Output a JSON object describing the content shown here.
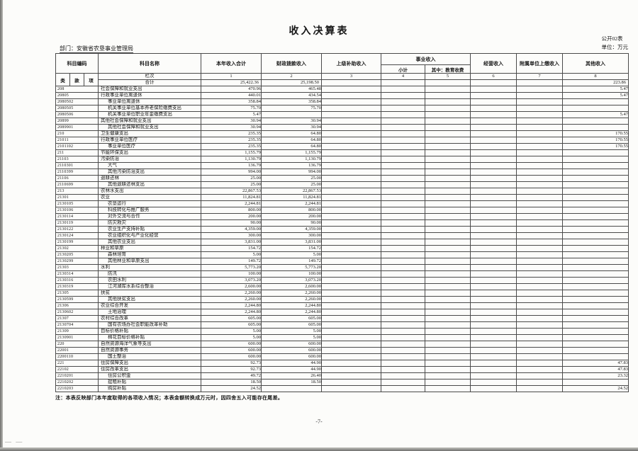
{
  "page": {
    "title": "收入决算表",
    "table_code": "公开02表",
    "unit_label": "单位：万元",
    "department_label": "部门：安徽省农垦事业管理局",
    "note": "注：本表反映部门本年度取得的各项收入情况；本表金额转换成万元时，因四舍五入可能存在尾差。",
    "page_number": "-7-",
    "corner_marks": "— —"
  },
  "table": {
    "headers": {
      "subject_code": "科目编码",
      "class": "类",
      "section": "款",
      "item": "项",
      "subject_name": "科目名称",
      "total_income": "本年收入合计",
      "fiscal_appropriation": "财政拨款收入",
      "superior_subsidy": "上级补助收入",
      "business_income": "事业收入",
      "subtotal": "小计",
      "education_fees": "其中：教育收费",
      "operating_income": "经营收入",
      "affiliated_unit_income": "附属单位上缴收入",
      "other_income": "其他收入"
    },
    "lanci": {
      "label": "栏次",
      "numbers": [
        "1",
        "2",
        "3",
        "4",
        "5",
        "6",
        "7",
        "8"
      ]
    },
    "total_row": {
      "label": "合计",
      "values": [
        "25,422.36",
        "25,198.50",
        "",
        "",
        "",
        "",
        "",
        "223.86"
      ]
    },
    "rows": [
      {
        "code": "208",
        "name": "社会保障和就业支出",
        "indent": 0,
        "v": [
          "470.96",
          "465.48",
          "",
          "",
          "",
          "",
          "",
          "5.47"
        ]
      },
      {
        "code": "20805",
        "name": "行政事业单位离退休",
        "indent": 0,
        "v": [
          "440.01",
          "434.54",
          "",
          "",
          "",
          "",
          "",
          "5.47"
        ]
      },
      {
        "code": "2080502",
        "name": "事业单位离退休",
        "indent": 1,
        "v": [
          "358.84",
          "358.84",
          "",
          "",
          "",
          "",
          "",
          ""
        ]
      },
      {
        "code": "2080505",
        "name": "机关事业单位基本养老保险缴费支出",
        "indent": 1,
        "v": [
          "75.70",
          "75.70",
          "",
          "",
          "",
          "",
          "",
          ""
        ]
      },
      {
        "code": "2080506",
        "name": "机关事业单位职业年金缴费支出",
        "indent": 1,
        "v": [
          "5.47",
          "",
          "",
          "",
          "",
          "",
          "",
          "5.47"
        ]
      },
      {
        "code": "20899",
        "name": "其他社会保障和就业支出",
        "indent": 0,
        "v": [
          "30.94",
          "30.94",
          "",
          "",
          "",
          "",
          "",
          ""
        ]
      },
      {
        "code": "2089901",
        "name": "其他社会保障和就业支出",
        "indent": 1,
        "v": [
          "30.94",
          "30.94",
          "",
          "",
          "",
          "",
          "",
          ""
        ]
      },
      {
        "code": "210",
        "name": "卫生健康支出",
        "indent": 0,
        "v": [
          "235.35",
          "64.80",
          "",
          "",
          "",
          "",
          "",
          "170.55"
        ]
      },
      {
        "code": "21011",
        "name": "行政事业单位医疗",
        "indent": 0,
        "v": [
          "235.35",
          "64.80",
          "",
          "",
          "",
          "",
          "",
          "170.55"
        ]
      },
      {
        "code": "2101102",
        "name": "事业单位医疗",
        "indent": 1,
        "v": [
          "235.35",
          "64.80",
          "",
          "",
          "",
          "",
          "",
          "170.55"
        ]
      },
      {
        "code": "211",
        "name": "节能环保支出",
        "indent": 0,
        "v": [
          "1,155.79",
          "1,155.79",
          "",
          "",
          "",
          "",
          "",
          ""
        ]
      },
      {
        "code": "21103",
        "name": "污染防治",
        "indent": 0,
        "v": [
          "1,130.79",
          "1,130.79",
          "",
          "",
          "",
          "",
          "",
          ""
        ]
      },
      {
        "code": "2110301",
        "name": "大气",
        "indent": 1,
        "v": [
          "136.79",
          "136.79",
          "",
          "",
          "",
          "",
          "",
          ""
        ]
      },
      {
        "code": "2110399",
        "name": "其他污染防治支出",
        "indent": 1,
        "v": [
          "994.00",
          "994.00",
          "",
          "",
          "",
          "",
          "",
          ""
        ]
      },
      {
        "code": "21106",
        "name": "退耕还林",
        "indent": 0,
        "v": [
          "25.00",
          "25.00",
          "",
          "",
          "",
          "",
          "",
          ""
        ]
      },
      {
        "code": "2110699",
        "name": "其他退耕还林支出",
        "indent": 1,
        "v": [
          "25.00",
          "25.00",
          "",
          "",
          "",
          "",
          "",
          ""
        ]
      },
      {
        "code": "213",
        "name": "农林水支出",
        "indent": 0,
        "v": [
          "22,867.53",
          "22,867.53",
          "",
          "",
          "",
          "",
          "",
          ""
        ]
      },
      {
        "code": "21301",
        "name": "农业",
        "indent": 0,
        "v": [
          "11,824.81",
          "11,824.81",
          "",
          "",
          "",
          "",
          "",
          ""
        ]
      },
      {
        "code": "2130105",
        "name": "农垦运行",
        "indent": 1,
        "v": [
          "2,244.81",
          "2,244.81",
          "",
          "",
          "",
          "",
          "",
          ""
        ]
      },
      {
        "code": "2130106",
        "name": "科技转化与推广服务",
        "indent": 1,
        "v": [
          "800.00",
          "800.00",
          "",
          "",
          "",
          "",
          "",
          ""
        ]
      },
      {
        "code": "2130114",
        "name": "对外交流与合作",
        "indent": 1,
        "v": [
          "200.00",
          "200.00",
          "",
          "",
          "",
          "",
          "",
          ""
        ]
      },
      {
        "code": "2130119",
        "name": "防灾救灾",
        "indent": 1,
        "v": [
          "90.00",
          "90.00",
          "",
          "",
          "",
          "",
          "",
          ""
        ]
      },
      {
        "code": "2130122",
        "name": "农业生产支持补贴",
        "indent": 1,
        "v": [
          "4,359.00",
          "4,359.00",
          "",
          "",
          "",
          "",
          "",
          ""
        ]
      },
      {
        "code": "2130124",
        "name": "农业组织化与产业化经营",
        "indent": 1,
        "v": [
          "300.00",
          "300.00",
          "",
          "",
          "",
          "",
          "",
          ""
        ]
      },
      {
        "code": "2130199",
        "name": "其他农业支出",
        "indent": 1,
        "v": [
          "3,831.00",
          "3,831.00",
          "",
          "",
          "",
          "",
          "",
          ""
        ]
      },
      {
        "code": "21302",
        "name": "林业和草原",
        "indent": 0,
        "v": [
          "154.72",
          "154.72",
          "",
          "",
          "",
          "",
          "",
          ""
        ]
      },
      {
        "code": "2130205",
        "name": "森林培育",
        "indent": 1,
        "v": [
          "5.00",
          "5.00",
          "",
          "",
          "",
          "",
          "",
          ""
        ]
      },
      {
        "code": "2130299",
        "name": "其他林业和草原支出",
        "indent": 1,
        "v": [
          "149.72",
          "149.72",
          "",
          "",
          "",
          "",
          "",
          ""
        ]
      },
      {
        "code": "21303",
        "name": "水利",
        "indent": 0,
        "v": [
          "5,773.20",
          "5,773.20",
          "",
          "",
          "",
          "",
          "",
          ""
        ]
      },
      {
        "code": "2130314",
        "name": "防汛",
        "indent": 1,
        "v": [
          "100.00",
          "100.00",
          "",
          "",
          "",
          "",
          "",
          ""
        ]
      },
      {
        "code": "2130316",
        "name": "农田水利",
        "indent": 1,
        "v": [
          "3,073.20",
          "3,073.20",
          "",
          "",
          "",
          "",
          "",
          ""
        ]
      },
      {
        "code": "2130319",
        "name": "江河湖库水系综合整治",
        "indent": 1,
        "v": [
          "2,600.00",
          "2,600.00",
          "",
          "",
          "",
          "",
          "",
          ""
        ]
      },
      {
        "code": "21305",
        "name": "扶贫",
        "indent": 0,
        "v": [
          "2,260.00",
          "2,260.00",
          "",
          "",
          "",
          "",
          "",
          ""
        ]
      },
      {
        "code": "2130599",
        "name": "其他扶贫支出",
        "indent": 1,
        "v": [
          "2,260.00",
          "2,260.00",
          "",
          "",
          "",
          "",
          "",
          ""
        ]
      },
      {
        "code": "21306",
        "name": "农业综合开发",
        "indent": 0,
        "v": [
          "2,244.80",
          "2,244.80",
          "",
          "",
          "",
          "",
          "",
          ""
        ]
      },
      {
        "code": "2130602",
        "name": "土地治理",
        "indent": 1,
        "v": [
          "2,244.80",
          "2,244.80",
          "",
          "",
          "",
          "",
          "",
          ""
        ]
      },
      {
        "code": "21307",
        "name": "农村综合改革",
        "indent": 0,
        "v": [
          "605.00",
          "605.00",
          "",
          "",
          "",
          "",
          "",
          ""
        ]
      },
      {
        "code": "2130704",
        "name": "国有农场办社会职能改革补助",
        "indent": 1,
        "v": [
          "605.00",
          "605.00",
          "",
          "",
          "",
          "",
          "",
          ""
        ]
      },
      {
        "code": "21309",
        "name": "目标价格补贴",
        "indent": 0,
        "v": [
          "5.00",
          "5.00",
          "",
          "",
          "",
          "",
          "",
          ""
        ]
      },
      {
        "code": "2130901",
        "name": "棉花目标价格补贴",
        "indent": 1,
        "v": [
          "5.00",
          "5.00",
          "",
          "",
          "",
          "",
          "",
          ""
        ]
      },
      {
        "code": "220",
        "name": "自然资源海洋气象等支出",
        "indent": 0,
        "v": [
          "600.00",
          "600.00",
          "",
          "",
          "",
          "",
          "",
          ""
        ]
      },
      {
        "code": "22001",
        "name": "自然资源事务",
        "indent": 0,
        "v": [
          "600.00",
          "600.00",
          "",
          "",
          "",
          "",
          "",
          ""
        ]
      },
      {
        "code": "2200110",
        "name": "国土整治",
        "indent": 1,
        "v": [
          "600.00",
          "600.00",
          "",
          "",
          "",
          "",
          "",
          ""
        ]
      },
      {
        "code": "221",
        "name": "住房保障支出",
        "indent": 0,
        "v": [
          "92.73",
          "44.90",
          "",
          "",
          "",
          "",
          "",
          "47.83"
        ]
      },
      {
        "code": "22102",
        "name": "住房改革支出",
        "indent": 0,
        "v": [
          "92.73",
          "44.90",
          "",
          "",
          "",
          "",
          "",
          "47.83"
        ]
      },
      {
        "code": "2210201",
        "name": "住房公积金",
        "indent": 1,
        "v": [
          "49.72",
          "26.40",
          "",
          "",
          "",
          "",
          "",
          "23.32"
        ]
      },
      {
        "code": "2210202",
        "name": "提租补贴",
        "indent": 1,
        "v": [
          "18.50",
          "18.50",
          "",
          "",
          "",
          "",
          "",
          ""
        ]
      },
      {
        "code": "2210203",
        "name": "购房补贴",
        "indent": 1,
        "v": [
          "24.52",
          "",
          "",
          "",
          "",
          "",
          "",
          "24.52"
        ]
      }
    ]
  }
}
